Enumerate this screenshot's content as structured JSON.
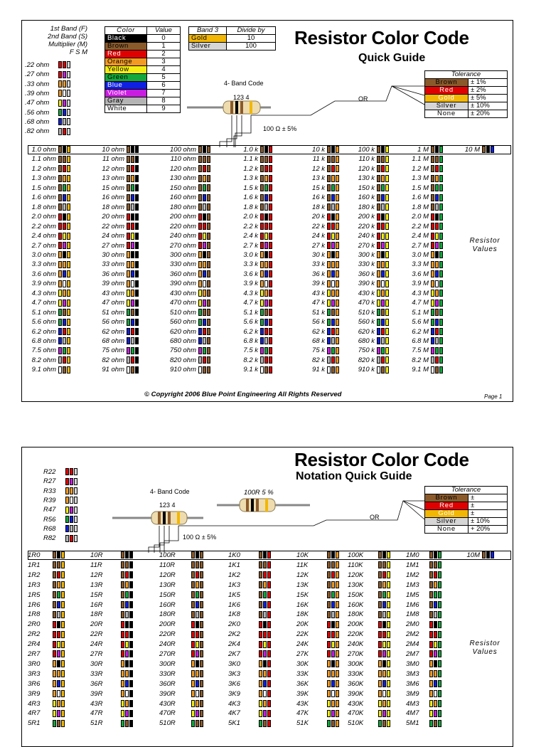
{
  "page1": {
    "title": "Resistor Color Code",
    "subtitle": "Quick Guide",
    "band_labels": [
      "1st Band (F)",
      "2nd Band (S)",
      "Multiplier (M)"
    ],
    "band_letters": "F S M",
    "color_table": {
      "header": [
        "Color",
        "Value"
      ],
      "rows": [
        {
          "name": "Black",
          "value": "0",
          "bg": "#000000",
          "fg": "#ffffff"
        },
        {
          "name": "Brown",
          "value": "1",
          "bg": "#8b5a2b",
          "fg": "#000000"
        },
        {
          "name": "Red",
          "value": "2",
          "bg": "#e00000",
          "fg": "#ffffff"
        },
        {
          "name": "Orange",
          "value": "3",
          "bg": "#f29a22",
          "fg": "#000000"
        },
        {
          "name": "Yellow",
          "value": "4",
          "bg": "#f5ee14",
          "fg": "#000000"
        },
        {
          "name": "Green",
          "value": "5",
          "bg": "#14a83c",
          "fg": "#000000"
        },
        {
          "name": "Blue",
          "value": "6",
          "bg": "#1020e0",
          "fg": "#ffffff"
        },
        {
          "name": "Violet",
          "value": "7",
          "bg": "#c81ee0",
          "fg": "#ffffff"
        },
        {
          "name": "Gray",
          "value": "8",
          "bg": "#b4b4b4",
          "fg": "#000000"
        },
        {
          "name": "White",
          "value": "9",
          "bg": "#ffffff",
          "fg": "#000000"
        }
      ]
    },
    "divide_table": {
      "header": [
        "Band 3",
        "Divide by"
      ],
      "rows": [
        {
          "name": "Gold",
          "value": "10",
          "bg": "#f2b705"
        },
        {
          "name": "Silver",
          "value": "100",
          "bg": "#d6d6d6"
        }
      ]
    },
    "tolerance": {
      "header": "Tolerance",
      "rows": [
        {
          "name": "Brown",
          "value": "± 1%",
          "bg": "#8b5a2b",
          "fg": "#000000"
        },
        {
          "name": "Red",
          "value": "± 2%",
          "bg": "#e00000",
          "fg": "#ffffff"
        },
        {
          "name": "Gold",
          "value": "± 5%",
          "bg": "#f2b705",
          "fg": "#ffffff"
        },
        {
          "name": "Silver",
          "value": "± 10%",
          "bg": "#d6d6d6",
          "fg": "#000000"
        },
        {
          "name": "None",
          "value": "± 20%",
          "bg": "#ffffff",
          "fg": "#000000"
        }
      ]
    },
    "band_code_label": "4- Band Code",
    "band_numbers": "123  4",
    "example_value": "100 Ω ± 5%",
    "or_label": "OR",
    "submultiples": [
      {
        "label": ".22 ohm",
        "bands": [
          "red",
          "red",
          "silver"
        ]
      },
      {
        "label": ".27 ohm",
        "bands": [
          "red",
          "violet",
          "silver"
        ]
      },
      {
        "label": ".33 ohm",
        "bands": [
          "orange",
          "orange",
          "silver"
        ]
      },
      {
        "label": ".39 ohm",
        "bands": [
          "orange",
          "white",
          "silver"
        ]
      },
      {
        "label": ".47 ohm",
        "bands": [
          "yellow",
          "violet",
          "silver"
        ]
      },
      {
        "label": ".56 ohm",
        "bands": [
          "green",
          "blue",
          "silver"
        ]
      },
      {
        "label": ".68 ohm",
        "bands": [
          "blue",
          "gray",
          "silver"
        ]
      },
      {
        "label": ".82 ohm",
        "bands": [
          "gray",
          "red",
          "silver"
        ]
      }
    ],
    "columns": [
      {
        "unit": "ohm",
        "prefix": "",
        "mult": "gold"
      },
      {
        "unit": "ohm",
        "prefix": "",
        "mult": "black"
      },
      {
        "unit": "ohm",
        "prefix": "",
        "mult": "brown"
      },
      {
        "unit": "k",
        "prefix": "",
        "mult": "red"
      },
      {
        "unit": "k",
        "prefix": "",
        "mult": "orange"
      },
      {
        "unit": "k",
        "prefix": "",
        "mult": "yellow"
      },
      {
        "unit": "M",
        "prefix": "",
        "mult": "green"
      }
    ],
    "value_columns": [
      [
        "1.0 ohm",
        "1.1 ohm",
        "1.2 ohm",
        "1.3 ohm",
        "1.5 ohm",
        "1.6 ohm",
        "1.8 ohm",
        "2.0 ohm",
        "2.2 ohm",
        "2.4 ohm",
        "2.7 ohm",
        "3.0 ohm",
        "3.3 ohm",
        "3.6 ohm",
        "3.9 ohm",
        "4.3 ohm",
        "4.7 ohm",
        "5.1 ohm",
        "5.6 ohm",
        "6.2 ohm",
        "6.8 ohm",
        "7.5 ohm",
        "8.2 ohm",
        "9.1 ohm"
      ],
      [
        "10 ohm",
        "11 ohm",
        "12 ohm",
        "13 ohm",
        "15 ohm",
        "16 ohm",
        "18 ohm",
        "20 ohm",
        "22 ohm",
        "24 ohm",
        "27 ohm",
        "30 ohm",
        "33 ohm",
        "36 ohm",
        "39 ohm",
        "43 ohm",
        "47 ohm",
        "51 ohm",
        "56 ohm",
        "62 ohm",
        "68 ohm",
        "75 ohm",
        "82 ohm",
        "91 ohm"
      ],
      [
        "100 ohm",
        "110 ohm",
        "120 ohm",
        "130 ohm",
        "150 ohm",
        "160 ohm",
        "180 ohm",
        "200 ohm",
        "220 ohm",
        "240 ohm",
        "270 ohm",
        "300 ohm",
        "330 ohm",
        "360 ohm",
        "390 ohm",
        "430 ohm",
        "470 ohm",
        "510 ohm",
        "560 ohm",
        "620 ohm",
        "680 ohm",
        "750 ohm",
        "820 ohm",
        "910 ohm"
      ],
      [
        "1.0 k",
        "1.1 k",
        "1.2 k",
        "1.3 k",
        "1.5 k",
        "1.6 k",
        "1.8 k",
        "2.0 k",
        "2.2 k",
        "2.4 k",
        "2.7 k",
        "3.0 k",
        "3.3 k",
        "3.6 k",
        "3.9 k",
        "4.3 k",
        "4.7 k",
        "5.1 k",
        "5.6 k",
        "6.2 k",
        "6.8 k",
        "7.5 k",
        "8.2 k",
        "9.1 k"
      ],
      [
        "10 k",
        "11 k",
        "12 k",
        "13 k",
        "15 k",
        "16 k",
        "18 k",
        "20 k",
        "22 k",
        "24 k",
        "27 k",
        "30 k",
        "33 k",
        "36 k",
        "39 k",
        "43 k",
        "47 k",
        "51 k",
        "56 k",
        "62 k",
        "68 k",
        "75 k",
        "82 k",
        "91 k"
      ],
      [
        "100 k",
        "110 k",
        "120 k",
        "130 k",
        "150 k",
        "160 k",
        "180 k",
        "200 k",
        "220 k",
        "240 k",
        "270 k",
        "300 k",
        "330 k",
        "360 k",
        "390 k",
        "430 k",
        "470 k",
        "510 k",
        "560 k",
        "620 k",
        "680 k",
        "750 k",
        "820 k",
        "910 k"
      ],
      [
        "1 M",
        "1.1 M",
        "1.2 M",
        "1.3 M",
        "1.5 M",
        "1.6 M",
        "1.8 M",
        "2.0 M",
        "2.2 M",
        "2.4 M",
        "2.7 M",
        "3.0 M",
        "3.3 M",
        "3.6 M",
        "3.9 M",
        "4.3 M",
        "4.7 M",
        "5.1 M",
        "5.6 M",
        "6.2 M",
        "6.8 M",
        "7.5 M",
        "8.2 M",
        "9.1 M"
      ]
    ],
    "ten_meg": "10 M",
    "resistor_values": [
      "Resistor",
      "Values"
    ],
    "copyright": "© Copyright  2006 Blue Point Engineering        All Rights Reserved",
    "page_label": "Page 1"
  },
  "page2": {
    "title": "Resistor Color Code",
    "subtitle": "Notation Quick Guide",
    "band_code_label": "4- Band Code",
    "band_numbers": "123  4",
    "example_value": "100 Ω ± 5%",
    "example_notation": "100R 5 %",
    "or_label": "OR",
    "tolerance": {
      "header": "Tolerance",
      "rows": [
        {
          "name": "Brown",
          "value": "±",
          "bg": "#8b5a2b",
          "fg": "#000000"
        },
        {
          "name": "Red",
          "value": "±",
          "bg": "#e00000",
          "fg": "#ffffff"
        },
        {
          "name": "Gold",
          "value": "±",
          "bg": "#f2b705",
          "fg": "#ffffff"
        },
        {
          "name": "Silver",
          "value": "± 10%",
          "bg": "#d6d6d6",
          "fg": "#000000"
        },
        {
          "name": "None",
          "value": "+ 20%",
          "bg": "#ffffff",
          "fg": "#000000"
        }
      ]
    },
    "submultiples": [
      {
        "label": "R22",
        "bands": [
          "red",
          "red",
          "silver"
        ]
      },
      {
        "label": "R27",
        "bands": [
          "red",
          "violet",
          "silver"
        ]
      },
      {
        "label": "R33",
        "bands": [
          "orange",
          "orange",
          "silver"
        ]
      },
      {
        "label": "R39",
        "bands": [
          "orange",
          "white",
          "silver"
        ]
      },
      {
        "label": "R47",
        "bands": [
          "yellow",
          "violet",
          "silver"
        ]
      },
      {
        "label": "R56",
        "bands": [
          "green",
          "blue",
          "silver"
        ]
      },
      {
        "label": "R68",
        "bands": [
          "blue",
          "gray",
          "silver"
        ]
      },
      {
        "label": "R82",
        "bands": [
          "gray",
          "red",
          "silver"
        ]
      }
    ],
    "value_columns": [
      [
        "1R0",
        "1R1",
        "1R2",
        "1R3",
        "1R5",
        "1R6",
        "1R8",
        "2R0",
        "2R2",
        "2R4",
        "2R7",
        "3R0",
        "3R3",
        "3R6",
        "3R9",
        "4R3",
        "4R7",
        "5R1"
      ],
      [
        "10R",
        "11R",
        "12R",
        "13R",
        "15R",
        "16R",
        "18R",
        "20R",
        "22R",
        "24R",
        "27R",
        "30R",
        "33R",
        "36R",
        "39R",
        "43R",
        "47R",
        "51R"
      ],
      [
        "100R",
        "110R",
        "120R",
        "130R",
        "150R",
        "160R",
        "180R",
        "200R",
        "220R",
        "240R",
        "270R",
        "300R",
        "330R",
        "360R",
        "390R",
        "430R",
        "470R",
        "510R"
      ],
      [
        "1K0",
        "1K1",
        "1K2",
        "1K3",
        "1K5",
        "1K6",
        "1K8",
        "2K0",
        "2K2",
        "2K4",
        "2K7",
        "3K0",
        "3K3",
        "3K6",
        "3K9",
        "4K3",
        "4K7",
        "5K1"
      ],
      [
        "10K",
        "11K",
        "12K",
        "13K",
        "15K",
        "16K",
        "18K",
        "20K",
        "22K",
        "24K",
        "27K",
        "30K",
        "33K",
        "36K",
        "39K",
        "43K",
        "47K",
        "51K"
      ],
      [
        "100K",
        "110K",
        "120K",
        "130K",
        "150K",
        "160K",
        "180K",
        "200K",
        "220K",
        "240K",
        "270K",
        "300K",
        "330K",
        "360K",
        "390K",
        "430K",
        "470K",
        "510K"
      ],
      [
        "1M0",
        "1M1",
        "1M2",
        "1M3",
        "1M5",
        "1M6",
        "1M8",
        "2M0",
        "2M2",
        "2M4",
        "2M7",
        "3M0",
        "3M3",
        "3M6",
        "3M9",
        "4M3",
        "4M7",
        "5M1"
      ]
    ],
    "ten_meg": "10M",
    "resistor_values": [
      "Resistor",
      "Values"
    ]
  },
  "digits": [
    [
      "brown",
      "black"
    ],
    [
      "brown",
      "brown"
    ],
    [
      "brown",
      "red"
    ],
    [
      "brown",
      "orange"
    ],
    [
      "brown",
      "green"
    ],
    [
      "brown",
      "blue"
    ],
    [
      "brown",
      "gray"
    ],
    [
      "red",
      "black"
    ],
    [
      "red",
      "red"
    ],
    [
      "red",
      "yellow"
    ],
    [
      "red",
      "violet"
    ],
    [
      "orange",
      "black"
    ],
    [
      "orange",
      "orange"
    ],
    [
      "orange",
      "blue"
    ],
    [
      "orange",
      "white"
    ],
    [
      "yellow",
      "orange"
    ],
    [
      "yellow",
      "violet"
    ],
    [
      "green",
      "brown"
    ],
    [
      "green",
      "blue"
    ],
    [
      "blue",
      "red"
    ],
    [
      "blue",
      "gray"
    ],
    [
      "violet",
      "green"
    ],
    [
      "gray",
      "red"
    ],
    [
      "white",
      "brown"
    ]
  ],
  "multipliers": [
    "gold",
    "black",
    "brown",
    "red",
    "orange",
    "yellow",
    "green"
  ],
  "palette": {
    "black": "#000000",
    "brown": "#8b5a2b",
    "red": "#e00000",
    "orange": "#f29a22",
    "yellow": "#f5ee14",
    "green": "#14a83c",
    "blue": "#1020e0",
    "violet": "#c81ee0",
    "gray": "#b4b4b4",
    "white": "#ffffff",
    "gold": "#f2b705",
    "silver": "#d6d6d6"
  }
}
